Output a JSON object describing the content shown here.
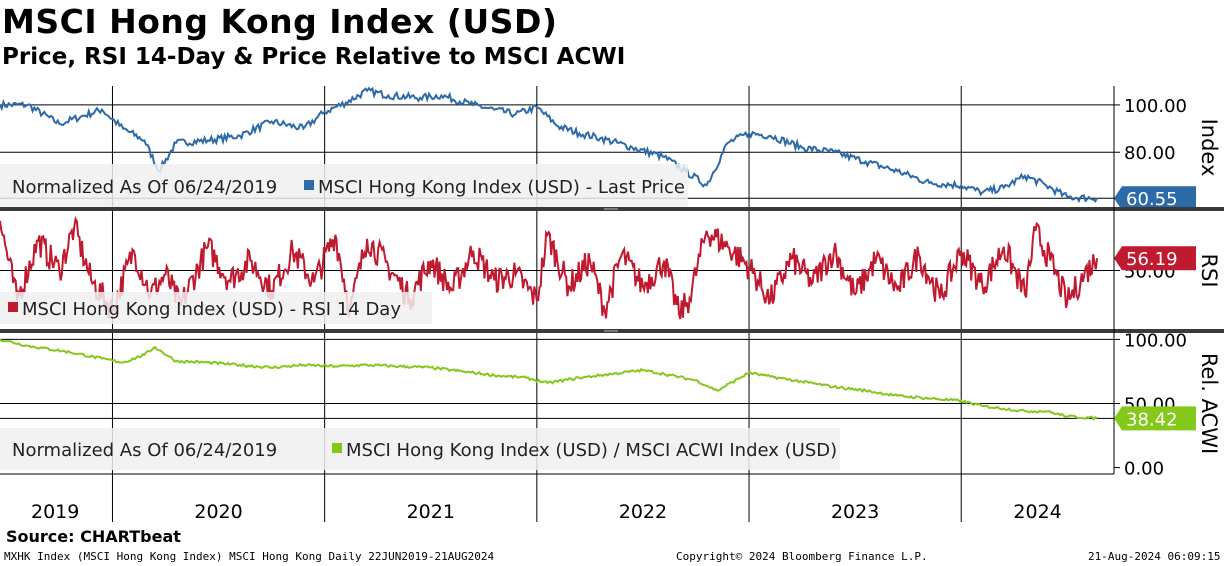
{
  "title": "MSCI Hong Kong Index (USD)",
  "subtitle": "Price, RSI 14-Day & Price Relative to MSCI ACWI",
  "source": "Source: CHARTbeat",
  "footer": {
    "left": "MXHK Index (MSCI Hong Kong Index) MSCI Hong Kong  Daily 22JUN2019-21AUG2024",
    "center": "Copyright© 2024 Bloomberg Finance L.P.",
    "right": "21-Aug-2024 06:09:15"
  },
  "colors": {
    "price": "#2d6aa8",
    "rsi": "#c01a30",
    "relative": "#84c81c",
    "grid": "#000000"
  },
  "chart_data": [
    {
      "type": "line",
      "name": "price",
      "axis_label": "Index",
      "legend": [
        "Normalized As Of 06/24/2019",
        "MSCI Hong Kong Index (USD) - Last Price"
      ],
      "last_value_label": "60.55",
      "ylim": [
        56,
        108
      ],
      "ticks": [
        {
          "v": 100,
          "label": "100.00"
        },
        {
          "v": 80,
          "label": "80.00"
        }
      ],
      "gridlines": [
        100,
        80,
        60.55
      ],
      "x": [
        2019.47,
        2019.6,
        2019.75,
        2019.85,
        2019.95,
        2020.05,
        2020.15,
        2020.22,
        2020.3,
        2020.45,
        2020.6,
        2020.75,
        2020.9,
        2021.0,
        2021.1,
        2021.2,
        2021.3,
        2021.45,
        2021.55,
        2021.7,
        2021.8,
        2021.9,
        2022.0,
        2022.1,
        2022.2,
        2022.3,
        2022.45,
        2022.6,
        2022.7,
        2022.8,
        2022.9,
        2023.0,
        2023.1,
        2023.25,
        2023.4,
        2023.55,
        2023.7,
        2023.85,
        2024.0,
        2024.1,
        2024.2,
        2024.3,
        2024.4,
        2024.5,
        2024.64
      ],
      "values": [
        100,
        100,
        92,
        95,
        98,
        90,
        85,
        72,
        84,
        85,
        87,
        93,
        90,
        97,
        101,
        106,
        104,
        103,
        104,
        100,
        98,
        96,
        99,
        91,
        88,
        86,
        82,
        78,
        72,
        66,
        84,
        88,
        87,
        82,
        80,
        76,
        72,
        67,
        66,
        63,
        65,
        70,
        66,
        61,
        60.55
      ]
    },
    {
      "type": "line",
      "name": "rsi",
      "axis_label": "RSI",
      "legend": [
        "MSCI Hong Kong Index (USD) - RSI 14 Day"
      ],
      "last_value_label": "56.19",
      "ylim": [
        20,
        80
      ],
      "ticks": [
        {
          "v": 50,
          "label": "50.00"
        }
      ],
      "gridlines": [
        50
      ],
      "x": [
        2019.47,
        2019.55,
        2019.65,
        2019.75,
        2019.82,
        2019.9,
        2020.0,
        2020.1,
        2020.18,
        2020.25,
        2020.32,
        2020.45,
        2020.55,
        2020.65,
        2020.75,
        2020.85,
        2020.95,
        2021.05,
        2021.12,
        2021.2,
        2021.3,
        2021.4,
        2021.5,
        2021.6,
        2021.7,
        2021.8,
        2021.9,
        2022.0,
        2022.05,
        2022.15,
        2022.25,
        2022.32,
        2022.4,
        2022.5,
        2022.6,
        2022.67,
        2022.72,
        2022.8,
        2022.9,
        2023.0,
        2023.1,
        2023.2,
        2023.3,
        2023.4,
        2023.5,
        2023.6,
        2023.7,
        2023.8,
        2023.9,
        2024.0,
        2024.1,
        2024.2,
        2024.3,
        2024.35,
        2024.42,
        2024.5,
        2024.58,
        2024.64
      ],
      "values": [
        75,
        35,
        65,
        50,
        72,
        45,
        30,
        60,
        38,
        48,
        32,
        62,
        45,
        55,
        40,
        60,
        44,
        68,
        30,
        66,
        52,
        36,
        55,
        40,
        60,
        45,
        48,
        35,
        68,
        42,
        55,
        30,
        58,
        42,
        55,
        28,
        36,
        70,
        62,
        52,
        35,
        56,
        44,
        60,
        38,
        56,
        40,
        58,
        36,
        60,
        42,
        62,
        38,
        70,
        55,
        34,
        48,
        56.19
      ]
    },
    {
      "type": "line",
      "name": "relative",
      "axis_label": "Rel. ACWI",
      "legend": [
        "Normalized As Of 06/24/2019",
        "MSCI Hong Kong Index (USD) / MSCI ACWI Index (USD)"
      ],
      "last_value_label": "38.42",
      "ylim": [
        -5,
        105
      ],
      "ticks": [
        {
          "v": 100,
          "label": "100.00"
        },
        {
          "v": 50,
          "label": "50.00"
        },
        {
          "v": 0,
          "label": "0.00"
        }
      ],
      "gridlines": [
        100,
        50,
        38.42
      ],
      "x": [
        2019.47,
        2019.6,
        2019.8,
        2019.95,
        2020.05,
        2020.15,
        2020.2,
        2020.3,
        2020.45,
        2020.6,
        2020.75,
        2020.9,
        2021.05,
        2021.2,
        2021.35,
        2021.5,
        2021.65,
        2021.8,
        2021.95,
        2022.05,
        2022.2,
        2022.35,
        2022.5,
        2022.6,
        2022.75,
        2022.85,
        2023.0,
        2023.1,
        2023.25,
        2023.4,
        2023.55,
        2023.7,
        2023.85,
        2024.0,
        2024.1,
        2024.2,
        2024.3,
        2024.4,
        2024.5,
        2024.64
      ],
      "values": [
        100,
        95,
        90,
        85,
        82,
        88,
        94,
        83,
        82,
        80,
        78,
        80,
        79,
        80,
        79,
        78,
        75,
        72,
        70,
        66,
        70,
        73,
        76,
        73,
        68,
        60,
        74,
        71,
        67,
        63,
        60,
        56,
        54,
        52,
        48,
        46,
        44,
        44,
        40,
        38.42
      ]
    }
  ],
  "x_axis": {
    "xlim": [
      2019.47,
      2024.72
    ],
    "year_dividers": [
      2020,
      2021,
      2022,
      2023,
      2024
    ],
    "year_labels": [
      {
        "label": "2019",
        "pos": 2019.73
      },
      {
        "label": "2020",
        "pos": 2020.5
      },
      {
        "label": "2021",
        "pos": 2021.5
      },
      {
        "label": "2022",
        "pos": 2022.5
      },
      {
        "label": "2023",
        "pos": 2023.5
      },
      {
        "label": "2024",
        "pos": 2024.36
      }
    ]
  }
}
